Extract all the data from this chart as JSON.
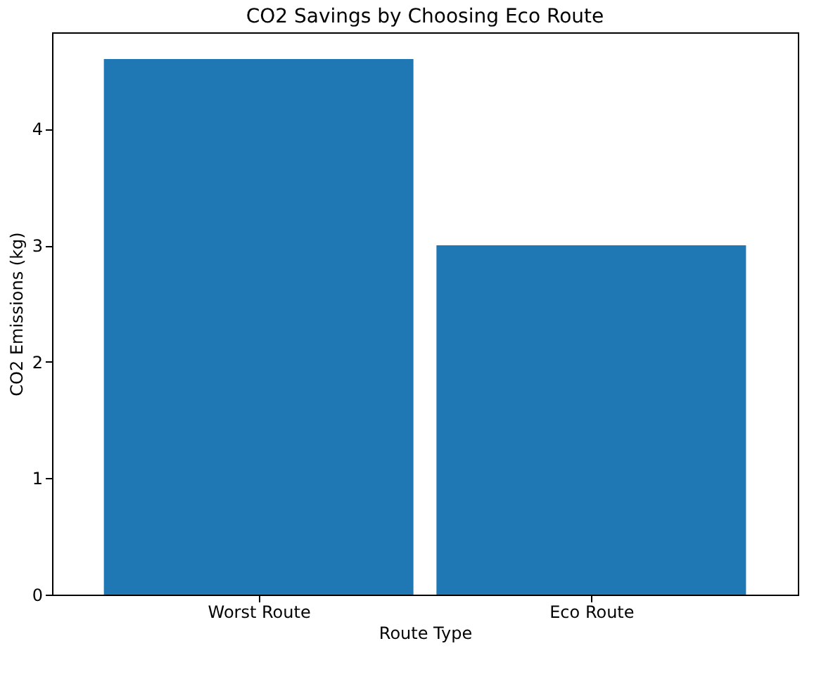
{
  "chart_data": {
    "type": "bar",
    "title": "CO2 Savings by Choosing Eco Route",
    "xlabel": "Route Type",
    "ylabel": "CO2 Emissions (kg)",
    "categories": [
      "Worst Route",
      "Eco Route"
    ],
    "values": [
      4.6,
      3.0
    ],
    "color": "#1f77b4",
    "ylim": [
      0,
      4.83
    ],
    "yticks": [
      0,
      1,
      2,
      3,
      4
    ],
    "grid": false
  }
}
